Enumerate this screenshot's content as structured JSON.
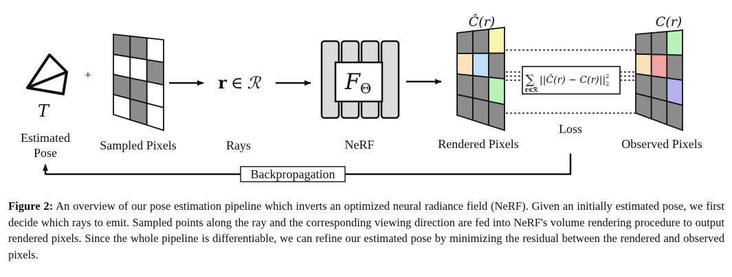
{
  "diagram": {
    "camera": {
      "math_symbol": "T",
      "label_line1": "Estimated",
      "label_line2": "Pose"
    },
    "plus_sign": "+",
    "sampled_pixels": {
      "label": "Sampled Pixels"
    },
    "rays": {
      "math_r": "r",
      "math_in": "∈",
      "math_set": "ℛ",
      "label": "Rays"
    },
    "nerf": {
      "math_F": "F",
      "math_theta": "Θ",
      "label": "NeRF"
    },
    "rendered_pixels": {
      "math_label": "Ĉ(r)",
      "label": "Rendered Pixels"
    },
    "observed_pixels": {
      "math_label": "C(r)",
      "label": "Observed Pixels"
    },
    "loss": {
      "sum": "∑",
      "sum_sub": "r∈ℛ",
      "formula": "||Ĉ(r) − C(r)||",
      "sup": "2",
      "sub": "2",
      "label": "Loss"
    },
    "backprop": {
      "label": "Backpropagation"
    },
    "colors": {
      "gray": "#8c8c8c",
      "yellow": "#f9f6b2",
      "orange": "#fbe0bc",
      "light_blue": "#bfe0f7",
      "green": "#b9f2b9",
      "pink": "#f3a3a3",
      "purple": "#b3b2ec",
      "nerf_fill": "#dcdcdc"
    }
  },
  "caption": {
    "bold": "Figure 2:",
    "text": " An overview of our pose estimation pipeline which inverts an optimized neural radiance field (NeRF). Given an initially estimated pose, we first decide which rays to emit. Sampled points along the ray and the corresponding viewing direction are fed into NeRF's volume rendering procedure to output rendered pixels. Since the whole pipeline is differentiable, we can refine our estimated pose by minimizing the residual between the rendered and observed pixels."
  }
}
